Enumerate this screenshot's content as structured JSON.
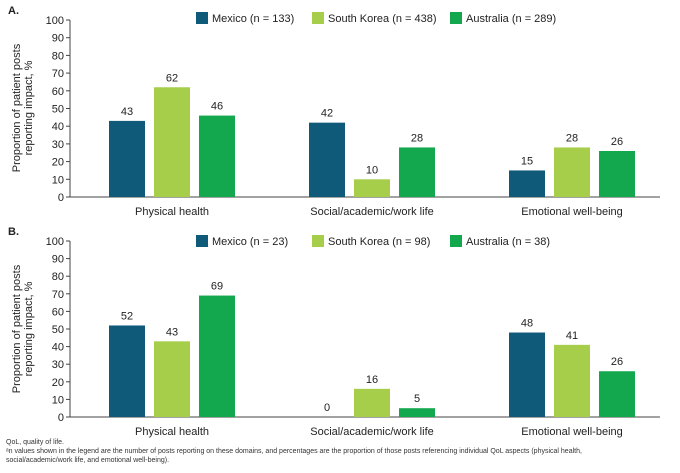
{
  "ylabel_line1": "Proportion of patient posts",
  "ylabel_line2": "reporting impact, %",
  "chart_data": [
    {
      "panel_label": "A.",
      "type": "bar",
      "categories": [
        "Physical health",
        "Social/academic/work life",
        "Emotional well-being"
      ],
      "series": [
        {
          "name": "Mexico (n = 133)",
          "color": "#0f5a78",
          "values": [
            43,
            42,
            15
          ]
        },
        {
          "name": "South Korea (n = 438)",
          "color": "#a6ce4b",
          "values": [
            62,
            10,
            28
          ]
        },
        {
          "name": "Australia (n = 289)",
          "color": "#14a84e",
          "values": [
            46,
            28,
            26
          ]
        }
      ],
      "ylim": [
        0,
        100
      ],
      "yticks": [
        "0",
        "10",
        "20",
        "30",
        "40",
        "50",
        "60",
        "70",
        "80",
        "90",
        "100"
      ],
      "legend": "top"
    },
    {
      "panel_label": "B.",
      "type": "bar",
      "categories": [
        "Physical health",
        "Social/academic/work life",
        "Emotional well-being"
      ],
      "series": [
        {
          "name": "Mexico (n = 23)",
          "color": "#0f5a78",
          "values": [
            52,
            0,
            48
          ]
        },
        {
          "name": "South Korea (n = 98)",
          "color": "#a6ce4b",
          "values": [
            43,
            16,
            41
          ]
        },
        {
          "name": "Australia (n = 38)",
          "color": "#14a84e",
          "values": [
            69,
            5,
            26
          ]
        }
      ],
      "ylim": [
        0,
        100
      ],
      "yticks": [
        "0",
        "10",
        "20",
        "30",
        "40",
        "50",
        "60",
        "70",
        "80",
        "90",
        "100"
      ],
      "legend": "top"
    }
  ],
  "footnotes": {
    "line1": "QoL, quality of life.",
    "line2": "ᵃn values shown in the legend are the number of posts reporting on these domains, and percentages are the proportion of those posts referencing individual QoL aspects (physical health,",
    "line3": "social/academic/work life, and emotional well-being)."
  }
}
